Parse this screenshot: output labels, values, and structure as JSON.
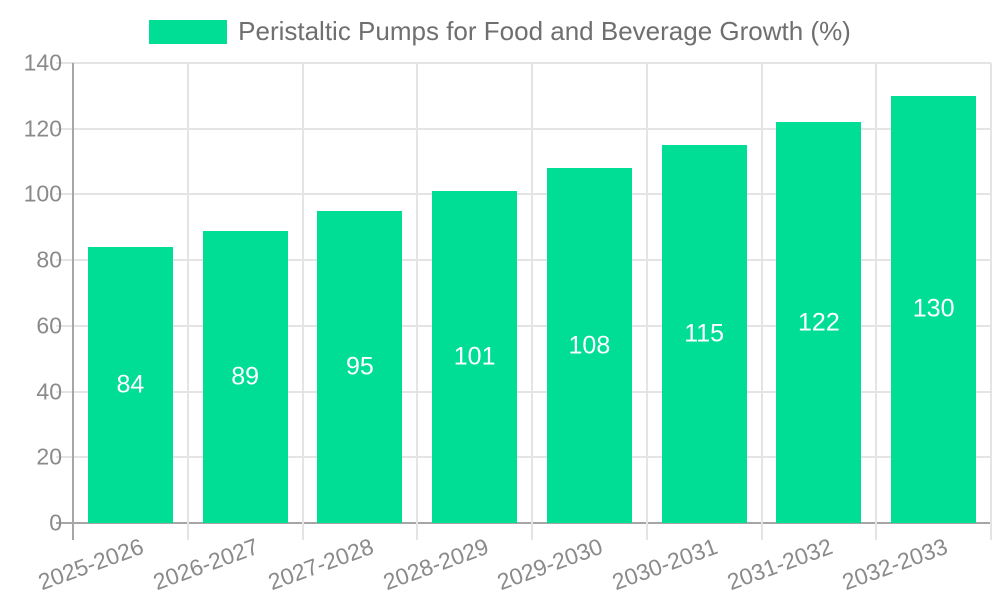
{
  "chart_data": {
    "type": "bar",
    "title": "Peristaltic Pumps for Food and Beverage Growth (%)",
    "legend_entries": [
      "Peristaltic Pumps for Food and Beverage Growth (%)"
    ],
    "legend_position": "top-center",
    "categories": [
      "2025-2026",
      "2026-2027",
      "2027-2028",
      "2028-2029",
      "2029-2030",
      "2030-2031",
      "2031-2032",
      "2032-2033"
    ],
    "values": [
      84,
      89,
      95,
      101,
      108,
      115,
      122,
      130
    ],
    "xlabel": "",
    "ylabel": "",
    "ylim": [
      0,
      140
    ],
    "yticks": [
      0,
      20,
      40,
      60,
      80,
      100,
      120,
      140
    ],
    "grid": true,
    "show_value_labels": true,
    "value_label_position": "center-of-bar",
    "x_tick_label_rotation_deg": -20,
    "colors": {
      "bar": "#00DE96",
      "grid": "#E4E4E4",
      "axis": "#A6A6A6",
      "tick_text": "#8A8A8A",
      "legend_text": "#6F6F6F",
      "bar_label_text": "#FFFFFF",
      "background": "#FFFFFF"
    }
  }
}
